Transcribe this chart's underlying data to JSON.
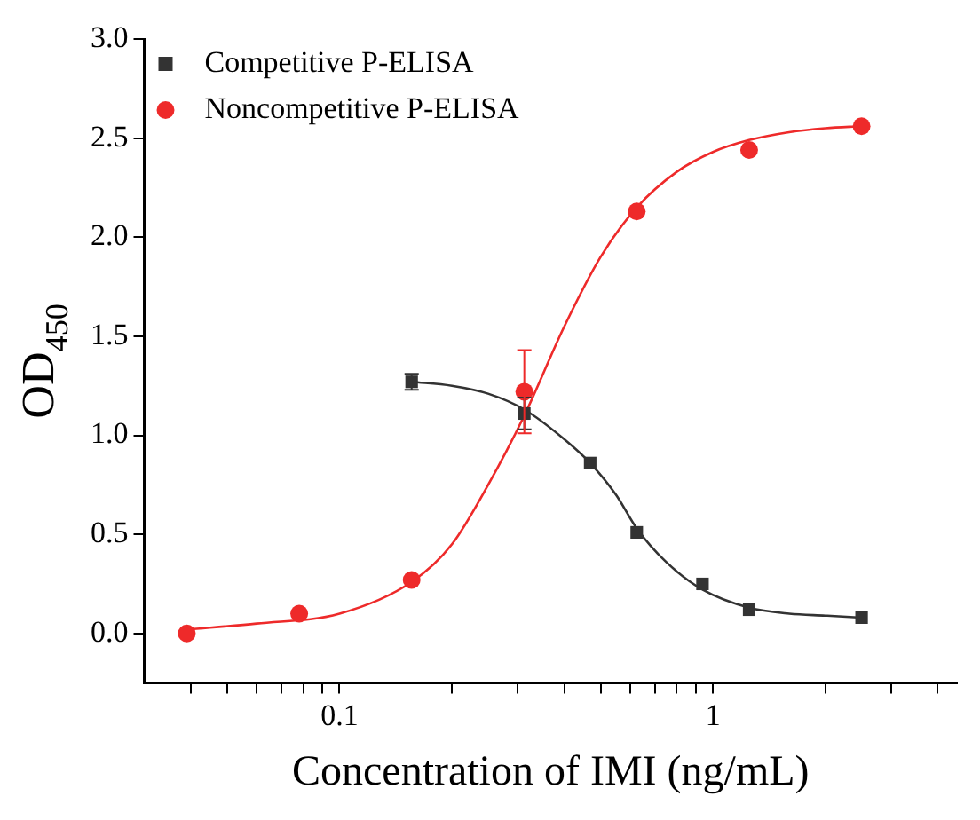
{
  "chart_data": {
    "type": "scatter",
    "xlabel": "Concentration of IMI (ng/mL)",
    "ylabel": "OD$_{450}$",
    "log": "x",
    "xlim": [
      0.03,
      4.5
    ],
    "ylim": [
      -0.25,
      3.0
    ],
    "xticks": [
      {
        "value": 0.04,
        "label": null
      },
      {
        "value": 0.05,
        "label": null
      },
      {
        "value": 0.06,
        "label": null
      },
      {
        "value": 0.07,
        "label": null
      },
      {
        "value": 0.08,
        "label": null
      },
      {
        "value": 0.09,
        "label": null
      },
      0.1,
      {
        "value": 0.2,
        "label": null
      },
      {
        "value": 0.3,
        "label": null
      },
      {
        "value": 0.4,
        "label": null
      },
      {
        "value": 0.5,
        "label": null
      },
      {
        "value": 0.6,
        "label": null
      },
      {
        "value": 0.7,
        "label": null
      },
      {
        "value": 0.8,
        "label": null
      },
      {
        "value": 0.9,
        "label": null
      },
      1,
      {
        "value": 2,
        "label": null
      },
      {
        "value": 3,
        "label": null
      },
      {
        "value": 4,
        "label": null
      }
    ],
    "yticks": [
      {
        "value": 0,
        "label": "0.0"
      },
      {
        "value": 0.5,
        "label": "0.5"
      },
      {
        "value": 1,
        "label": "1.0"
      },
      {
        "value": 1.5,
        "label": "1.5"
      },
      {
        "value": 2,
        "label": "2.0"
      },
      {
        "value": 2.5,
        "label": "2.5"
      },
      {
        "value": 3,
        "label": "3.0"
      }
    ],
    "grid": false,
    "legend": "top left",
    "series": [
      {
        "name": "Competitive P-ELISA",
        "marker": "square",
        "color": "#333333",
        "x": [
          0.156,
          0.3125,
          0.469,
          0.625,
          0.9375,
          1.25,
          2.5
        ],
        "values": [
          1.27,
          1.11,
          0.86,
          0.51,
          0.25,
          0.12,
          0.08
        ],
        "errors": [
          0.04,
          0.08,
          null,
          null,
          null,
          null,
          null
        ]
      },
      {
        "name": "Noncompetitive P-ELISA",
        "marker": "circle",
        "color": "#ee2a2a",
        "x": [
          0.039,
          0.078,
          0.156,
          0.3125,
          0.625,
          1.25,
          2.5
        ],
        "values": [
          0.0,
          0.1,
          0.27,
          1.22,
          2.13,
          2.44,
          2.56
        ],
        "errors": [
          null,
          null,
          null,
          0.21,
          null,
          null,
          null
        ]
      },
      {
        "type": "line",
        "marker": "none",
        "color": "#333333",
        "x": [
          0.156,
          0.2,
          0.25,
          0.3125,
          0.4,
          0.469,
          0.55,
          0.625,
          0.75,
          0.94,
          1.25,
          1.6,
          2.0,
          2.5
        ],
        "values": [
          1.27,
          1.25,
          1.21,
          1.13,
          0.98,
          0.86,
          0.7,
          0.53,
          0.36,
          0.22,
          0.13,
          0.1,
          0.09,
          0.08
        ]
      },
      {
        "type": "line",
        "marker": "none",
        "color": "#ee2a2a",
        "x": [
          0.039,
          0.06,
          0.1,
          0.156,
          0.2,
          0.25,
          0.3125,
          0.4,
          0.5,
          0.625,
          0.8,
          1.0,
          1.25,
          1.6,
          2.0,
          2.5
        ],
        "values": [
          0.02,
          0.05,
          0.1,
          0.26,
          0.45,
          0.75,
          1.1,
          1.55,
          1.9,
          2.15,
          2.33,
          2.43,
          2.49,
          2.53,
          2.55,
          2.56
        ]
      }
    ]
  }
}
